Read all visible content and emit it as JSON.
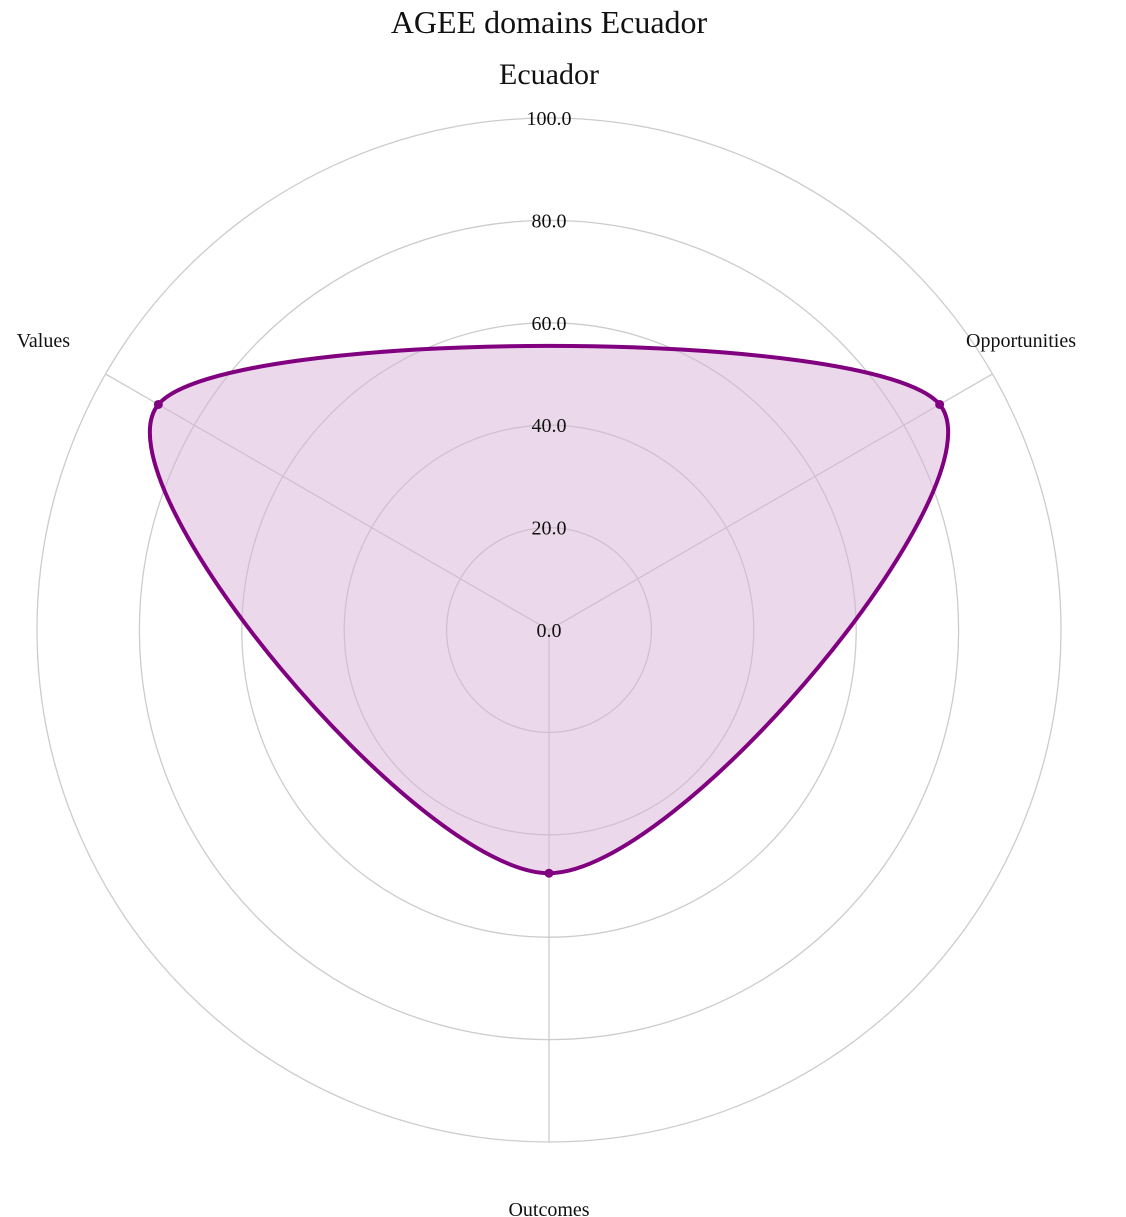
{
  "chart_data": {
    "type": "radar",
    "title": "AGEE domains Ecuador",
    "subtitle": "Ecuador",
    "axes": [
      "Opportunities",
      "Outcomes",
      "Values"
    ],
    "rlim": [
      0,
      100
    ],
    "rticks": [
      "0.0",
      "20.0",
      "40.0",
      "60.0",
      "80.0",
      "100.0"
    ],
    "rtick_values": [
      0,
      20,
      40,
      60,
      80,
      100
    ],
    "grid": true,
    "legend": "none",
    "series": [
      {
        "values": [
          88.1,
          47.5,
          88.1
        ],
        "color": "#800080",
        "fill_color": "#d8b4d8"
      }
    ]
  }
}
